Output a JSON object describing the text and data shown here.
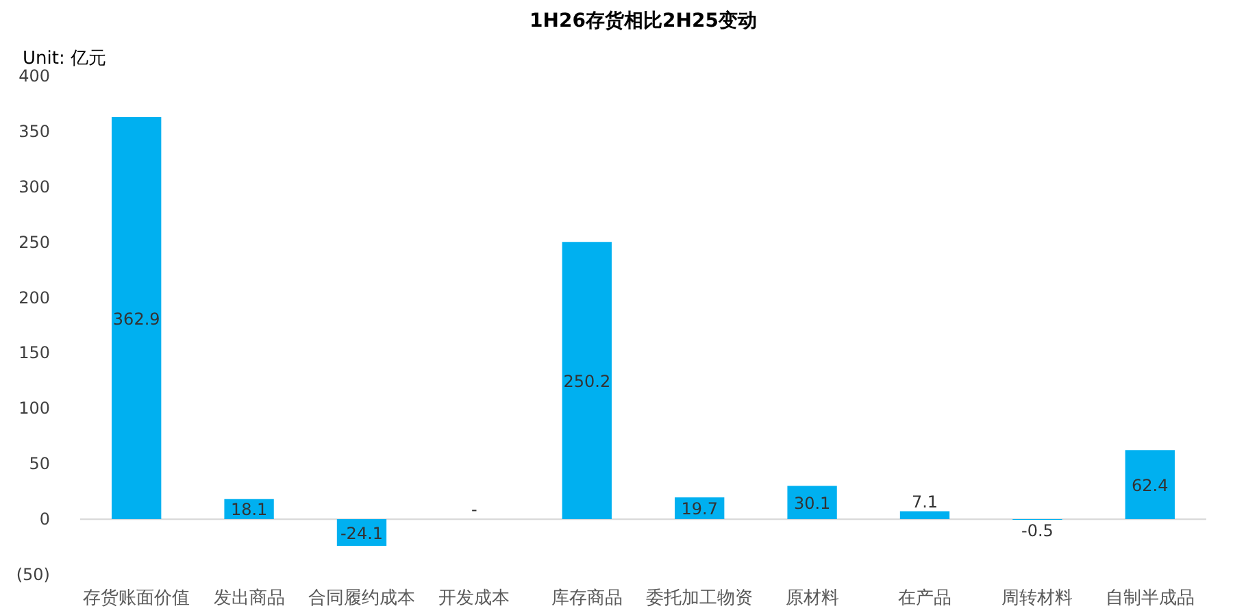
{
  "chart_data": {
    "type": "bar",
    "title": "1H26存货相比2H25变动",
    "ylabel": "Unit: 亿元",
    "categories": [
      "存货账面价值",
      "发出商品",
      "合同履约成本",
      "开发成本",
      "库存商品",
      "委托加工物资",
      "原材料",
      "在产品",
      "周转材料",
      "自制半成品"
    ],
    "values": [
      362.9,
      18.1,
      -24.1,
      0,
      250.2,
      19.7,
      30.1,
      7.1,
      -0.5,
      62.4
    ],
    "value_labels": [
      "362.9",
      "18.1",
      "-24.1",
      "-",
      "250.2",
      "19.7",
      "30.1",
      "7.1",
      "-0.5",
      "62.4"
    ],
    "color": "#00b0f0",
    "ylim": [
      -50,
      400
    ],
    "yticks": [
      {
        "value": -50,
        "label": "(50)"
      },
      0,
      50,
      100,
      150,
      200,
      250,
      300,
      350,
      400
    ],
    "ref_lines": [
      {
        "axis": "y",
        "value": 0,
        "color": "#d9d9d9"
      }
    ]
  }
}
